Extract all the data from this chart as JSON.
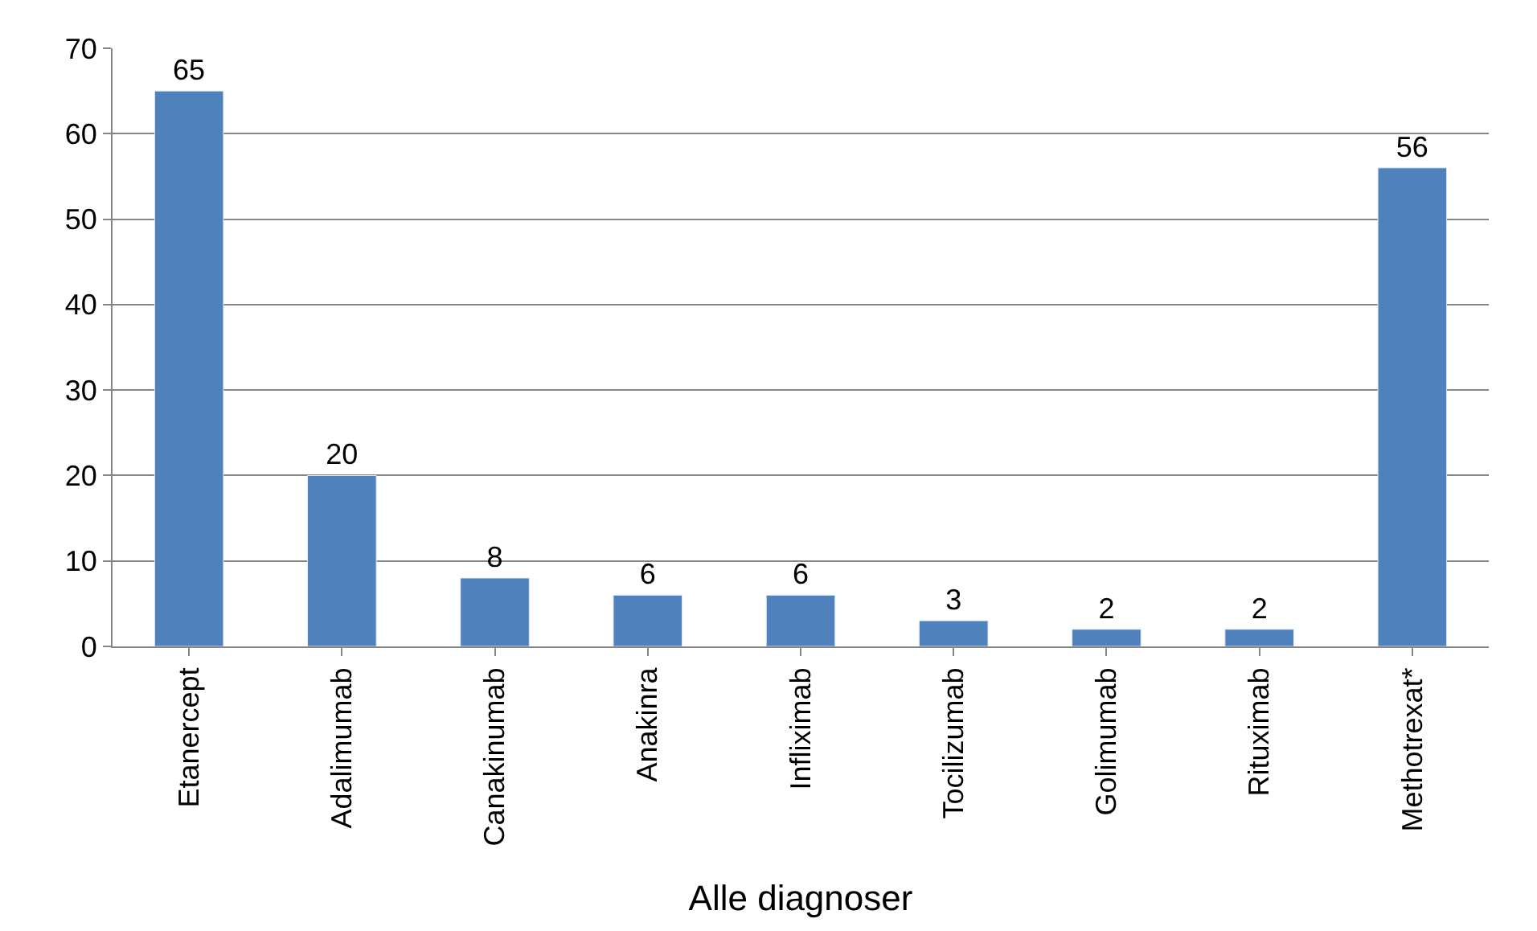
{
  "chart_data": {
    "type": "bar",
    "categories": [
      "Etanercept",
      "Adalimumab",
      "Canakinumab",
      "Anakinra",
      "Infliximab",
      "Tocilizumab",
      "Golimumab",
      "Rituximab",
      "Methotrexat*"
    ],
    "values": [
      65,
      20,
      8,
      6,
      6,
      3,
      2,
      2,
      56
    ],
    "color": "#4f81bd",
    "xlabel": "Alle diagnoser",
    "ylim": [
      0,
      70
    ],
    "yticks": [
      0,
      10,
      20,
      30,
      40,
      50,
      60,
      70
    ],
    "grid": "y",
    "data_labels": true
  }
}
